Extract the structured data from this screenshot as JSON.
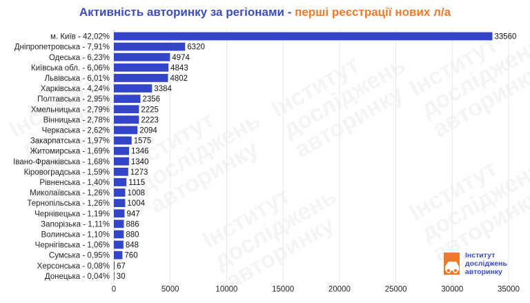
{
  "title": {
    "main": "Активність авторинку за регіонами",
    "separator": " - ",
    "accent": "перші реєстрації нових л/а"
  },
  "colors": {
    "bar": "#3345c8",
    "title_main": "#3b4cc0",
    "title_accent": "#f07a2b",
    "grid": "#e6e6e6",
    "logo_orange": "#f07a2b"
  },
  "watermark": {
    "lines": [
      "Інститут",
      "досліджень",
      "авторинку"
    ]
  },
  "logo": {
    "lines": [
      "Інститут",
      "досліджень",
      "авторинку"
    ]
  },
  "chart_data": {
    "type": "bar",
    "orientation": "horizontal",
    "categories": [
      "м. Київ - 42,02%",
      "Дніпропетровська - 7,91%",
      "Одеська - 6,23%",
      "Київська обл. - 6,06%",
      "Львівська - 6,01%",
      "Харківська - 4,24%",
      "Полтавська - 2,95%",
      "Хмельницька - 2,79%",
      "Вінницька - 2,78%",
      "Черкаська - 2,62%",
      "Закарпатська - 1,97%",
      "Житомирська - 1,69%",
      "Івано-Франківська - 1,68%",
      "Кіровоградська - 1,59%",
      "Рівненська - 1,40%",
      "Миколаївська - 1,26%",
      "Тернопільська - 1,26%",
      "Чернівецька - 1,19%",
      "Запорізька - 1,11%",
      "Волинська - 1,10%",
      "Чернігівська - 1,06%",
      "Сумська - 0,95%",
      "Херсонська - 0,08%",
      "Донецька - 0,04%"
    ],
    "values": [
      33560,
      6320,
      4974,
      4843,
      4802,
      3384,
      2356,
      2225,
      2223,
      2094,
      1575,
      1346,
      1340,
      1273,
      1115,
      1008,
      1004,
      947,
      886,
      880,
      848,
      760,
      67,
      30
    ],
    "xlim": [
      0,
      35000
    ],
    "xticks": [
      "0",
      "5000",
      "10000",
      "15000",
      "20000",
      "25000",
      "30000",
      "35000"
    ],
    "grid": true,
    "legend": "none"
  }
}
